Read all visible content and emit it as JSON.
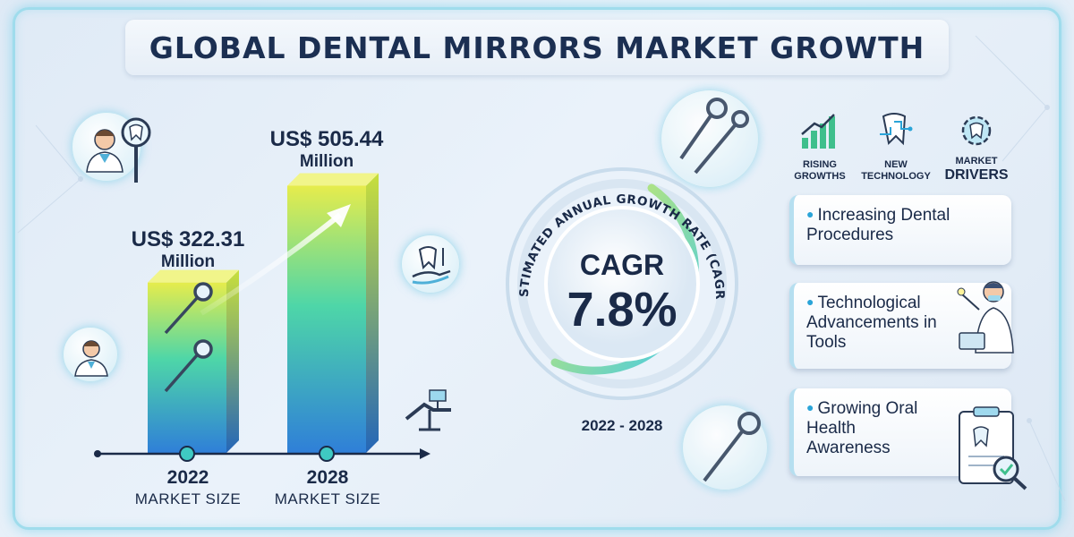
{
  "title": "GLOBAL DENTAL MIRRORS MARKET GROWTH",
  "chart_data": {
    "type": "bar",
    "categories": [
      "2022",
      "2028"
    ],
    "values": [
      322.31,
      505.44
    ],
    "category_sublabel": "MARKET SIZE",
    "value_labels": [
      {
        "amount": "US$ 322.31",
        "unit": "Million"
      },
      {
        "amount": "US$ 505.44",
        "unit": "Million"
      }
    ],
    "ylim": [
      0,
      520
    ],
    "grid": false
  },
  "cagr": {
    "ring_text": "ESTIMATED ANNUAL GROWTH RATE (CAGR)",
    "label": "CAGR",
    "value": "7.8%",
    "period": "2022 - 2028"
  },
  "drivers": {
    "headers": [
      {
        "line1": "RISING",
        "line2": "GROWTHS",
        "icon": "growth-chart-icon"
      },
      {
        "line1": "NEW",
        "line2": "TECHNOLOGY",
        "icon": "circuit-tooth-icon"
      },
      {
        "line1": "MARKET",
        "line2": "DRIVERS",
        "icon": "gear-tooth-icon"
      }
    ],
    "items": [
      "Increasing Dental Procedures",
      "Technological Advancements in Tools",
      "Growing Oral Health Awareness"
    ]
  },
  "colors": {
    "bar_top": "#e6ec4c",
    "bar_mid": "#4ed6a8",
    "bar_bottom": "#2f7fd8",
    "ring_accent": "#3fc9ea",
    "text": "#1a2a48"
  },
  "icons": [
    "dentist-icon",
    "tooth-magnifier-icon",
    "dental-mirror-icon",
    "tooth-hand-icon",
    "dental-chair-icon",
    "clipboard-icon",
    "trend-arrow-icon"
  ]
}
